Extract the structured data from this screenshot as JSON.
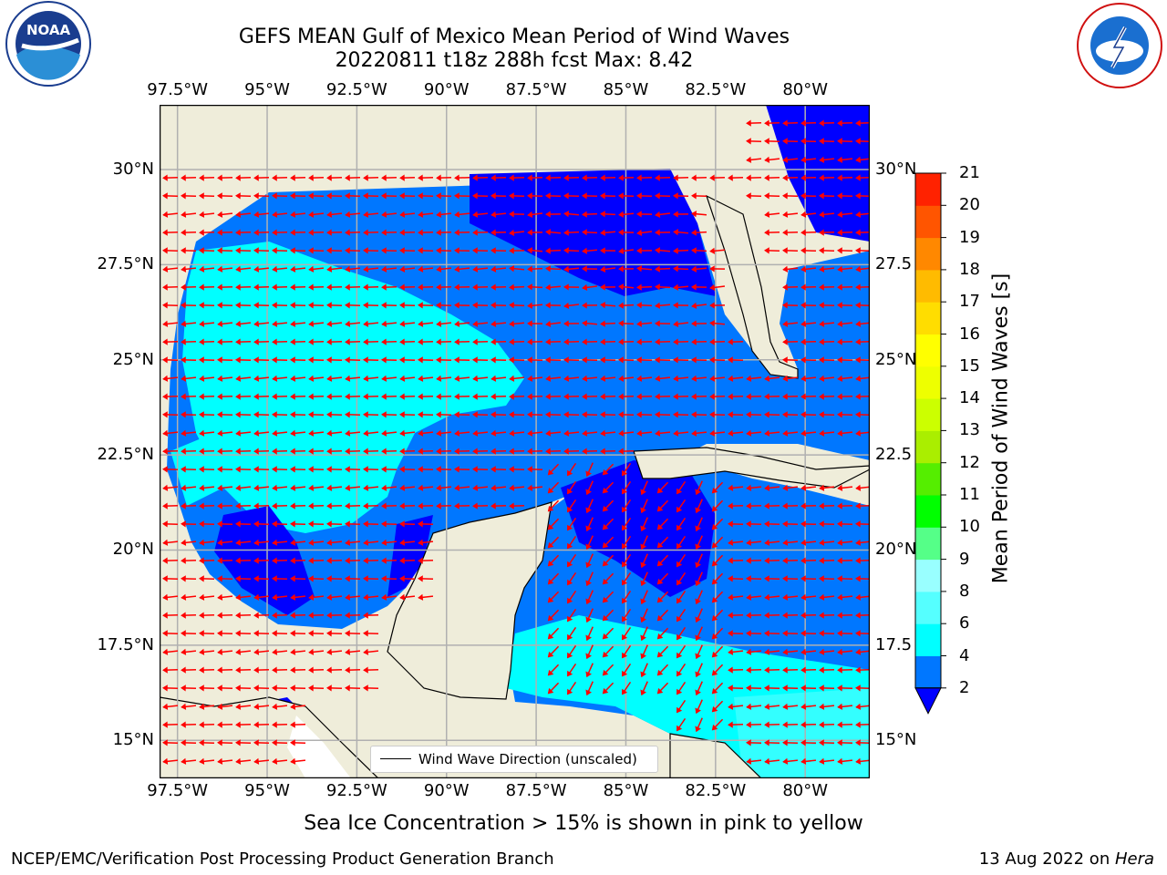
{
  "title_line1": "GEFS MEAN Gulf of Mexico Mean Period of Wind Waves",
  "title_line2": "20220811 t18z 288h fcst   Max: 8.42",
  "map": {
    "lon_labels": [
      "97.5°W",
      "95°W",
      "92.5°W",
      "90°W",
      "87.5°W",
      "85°W",
      "82.5°W",
      "80°W"
    ],
    "lon_values": [
      -97.5,
      -95,
      -92.5,
      -90,
      -87.5,
      -85,
      -82.5,
      -80
    ],
    "lat_labels_left": [
      "30°N",
      "27.5°N",
      "25°N",
      "22.5°N",
      "20°N",
      "17.5°N",
      "15°N"
    ],
    "lat_labels_right": [
      "30°N",
      "27.5",
      "25°N",
      "22.5",
      "20°N",
      "17.5",
      "15°N"
    ],
    "lat_values": [
      30,
      27.5,
      25,
      22.5,
      20,
      17.5,
      15
    ],
    "lon_range": [
      -98,
      -78.2
    ],
    "lat_range": [
      14,
      31.7
    ],
    "grid": true,
    "colors": {
      "land": "#efedda",
      "coast": "#000000",
      "gridline": "#b0b0b0",
      "arrow": "#ff0000",
      "band_lt2": "#0000ff",
      "band_2_4": "#0077ff",
      "band_4_6": "#00ffff",
      "band_6_8": "#33ffff"
    }
  },
  "legend": {
    "label": "Wind Wave Direction (unscaled)"
  },
  "colorbar": {
    "title": "Mean Period of Wind Waves [s]",
    "ticks": [
      "21",
      "20",
      "19",
      "18",
      "17",
      "16",
      "15",
      "14",
      "13",
      "12",
      "11",
      "10",
      "9",
      "8",
      "6",
      "4",
      "2"
    ],
    "levels": [
      2,
      4,
      6,
      8,
      9,
      10,
      11,
      12,
      13,
      14,
      15,
      16,
      17,
      18,
      19,
      20,
      21
    ],
    "colors": [
      "#0077ff",
      "#00ffff",
      "#55ffff",
      "#99ffff",
      "#55ff88",
      "#00ff00",
      "#55ee00",
      "#aaee00",
      "#ccff00",
      "#eeff00",
      "#ffff00",
      "#ffdd00",
      "#ffbb00",
      "#ff8800",
      "#ff5500",
      "#ff2200"
    ],
    "under_color": "#0000ff"
  },
  "subtitle": "Sea Ice Concentration > 15% is shown in pink to yellow",
  "footer_left": "NCEP/EMC/Verification Post Processing Product Generation Branch",
  "footer_date": "13 Aug 2022 on ",
  "footer_host": "Hera",
  "logo_left_text": "NOAA",
  "logo_right_text": "NATIONAL WEATHER SERVICE"
}
